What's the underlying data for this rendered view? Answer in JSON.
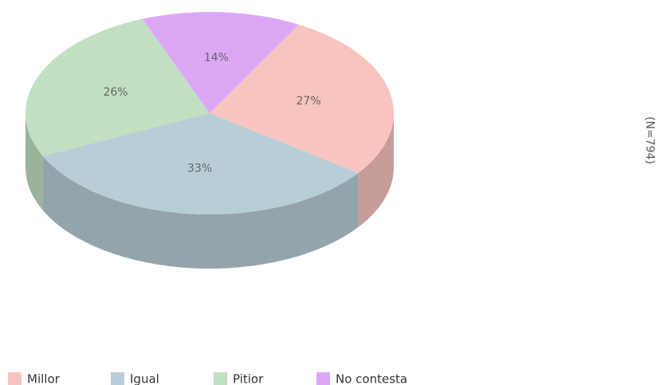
{
  "chart_data": {
    "type": "pie",
    "categories": [
      "Millor",
      "Igual",
      "Pitior",
      "No contesta"
    ],
    "values": [
      27,
      33,
      26,
      14
    ],
    "value_labels": [
      "27%",
      "33%",
      "26%",
      "14%"
    ],
    "colors": [
      "#f7c4c0",
      "#b8ced6",
      "#c1dfc1",
      "#dca8f6"
    ],
    "annotation": "(N=794)"
  }
}
